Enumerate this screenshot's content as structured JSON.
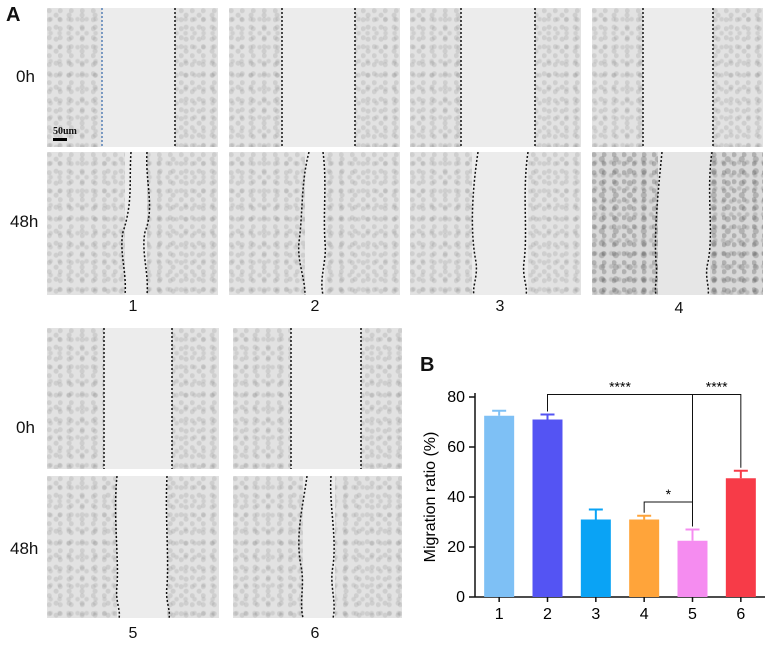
{
  "panel_a": {
    "letter": "A",
    "row_labels": [
      "0h",
      "48h",
      "0h",
      "48h"
    ],
    "group_labels": [
      "1",
      "2",
      "3",
      "4",
      "5",
      "6"
    ],
    "scale_bar": "50um"
  },
  "panel_b": {
    "letter": "B"
  },
  "chart_data": {
    "type": "bar",
    "categories": [
      "1",
      "2",
      "3",
      "4",
      "5",
      "6"
    ],
    "values": [
      72.5,
      71.0,
      31.0,
      31.0,
      22.5,
      47.5
    ],
    "errors": [
      2.0,
      2.0,
      4.0,
      1.5,
      4.5,
      3.0
    ],
    "colors": [
      "#7ec0f5",
      "#5454f3",
      "#0aa3f5",
      "#ffa43a",
      "#f58cf0",
      "#f73b48"
    ],
    "ylabel": "Migration ratio (%)",
    "ylim": [
      0,
      80
    ],
    "yticks": [
      0,
      20,
      40,
      60,
      80
    ],
    "significance": [
      {
        "from": "2",
        "to": "5",
        "label": "****"
      },
      {
        "from": "4",
        "to": "5",
        "label": "*"
      },
      {
        "from": "5",
        "to": "6",
        "label": "****"
      }
    ]
  }
}
